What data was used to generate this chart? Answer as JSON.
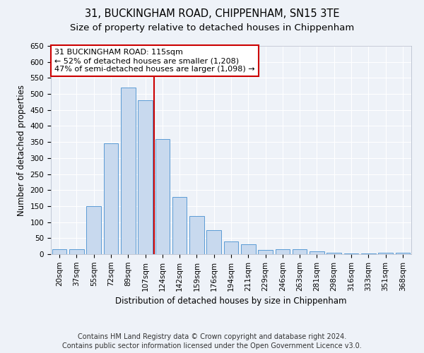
{
  "title": "31, BUCKINGHAM ROAD, CHIPPENHAM, SN15 3TE",
  "subtitle": "Size of property relative to detached houses in Chippenham",
  "xlabel": "Distribution of detached houses by size in Chippenham",
  "ylabel": "Number of detached properties",
  "categories": [
    "20sqm",
    "37sqm",
    "55sqm",
    "72sqm",
    "89sqm",
    "107sqm",
    "124sqm",
    "142sqm",
    "159sqm",
    "176sqm",
    "194sqm",
    "211sqm",
    "229sqm",
    "246sqm",
    "263sqm",
    "281sqm",
    "298sqm",
    "316sqm",
    "333sqm",
    "351sqm",
    "368sqm"
  ],
  "values": [
    15,
    15,
    150,
    345,
    520,
    480,
    360,
    178,
    118,
    75,
    40,
    30,
    13,
    15,
    15,
    8,
    5,
    2,
    2,
    5,
    5
  ],
  "bar_color": "#c8d9ee",
  "bar_edge_color": "#5b9bd5",
  "marker_line_color": "#cc0000",
  "annotation_title": "31 BUCKINGHAM ROAD: 115sqm",
  "annotation_line1": "← 52% of detached houses are smaller (1,208)",
  "annotation_line2": "47% of semi-detached houses are larger (1,098) →",
  "ylim": [
    0,
    650
  ],
  "yticks": [
    0,
    50,
    100,
    150,
    200,
    250,
    300,
    350,
    400,
    450,
    500,
    550,
    600,
    650
  ],
  "footer_line1": "Contains HM Land Registry data © Crown copyright and database right 2024.",
  "footer_line2": "Contains public sector information licensed under the Open Government Licence v3.0.",
  "bg_color": "#eef2f8",
  "plot_bg_color": "#eef2f8",
  "title_fontsize": 10.5,
  "subtitle_fontsize": 9.5,
  "axis_label_fontsize": 8.5,
  "tick_fontsize": 7.5,
  "footer_fontsize": 7,
  "annot_fontsize": 8
}
